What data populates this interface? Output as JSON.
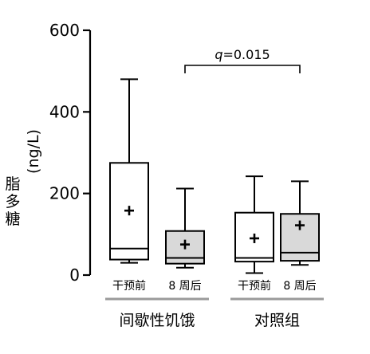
{
  "chart_data": {
    "type": "box",
    "ylabel_cn": [
      "脂",
      "多",
      "糖"
    ],
    "ylabel_unit": "(ng/L)",
    "ylim": [
      0,
      600
    ],
    "yticks": [
      0,
      200,
      400,
      600
    ],
    "categories": [
      "干预前",
      "8 周后",
      "干预前",
      "8 周后"
    ],
    "groups": [
      {
        "label": "间歇性饥饿",
        "categories": [
          0,
          1
        ]
      },
      {
        "label": "对照组",
        "categories": [
          2,
          3
        ]
      }
    ],
    "boxes": [
      {
        "category": "干预前",
        "group": "间歇性饥饿",
        "fill": "#ffffff",
        "whisker_low": 30,
        "q1": 38,
        "median": 65,
        "q3": 275,
        "whisker_high": 480,
        "mean": 158
      },
      {
        "category": "8 周后",
        "group": "间歇性饥饿",
        "fill": "#d9d9d9",
        "whisker_low": 18,
        "q1": 28,
        "median": 42,
        "q3": 108,
        "whisker_high": 212,
        "mean": 75
      },
      {
        "category": "干预前",
        "group": "对照组",
        "fill": "#ffffff",
        "whisker_low": 5,
        "q1": 33,
        "median": 42,
        "q3": 153,
        "whisker_high": 242,
        "mean": 90
      },
      {
        "category": "8 周后",
        "group": "对照组",
        "fill": "#d9d9d9",
        "whisker_low": 25,
        "q1": 35,
        "median": 55,
        "q3": 150,
        "whisker_high": 230,
        "mean": 122
      }
    ],
    "annotation": {
      "text_italic": "q",
      "text_rest": "=0.015",
      "from": 1,
      "to": 3,
      "y": 510
    }
  }
}
